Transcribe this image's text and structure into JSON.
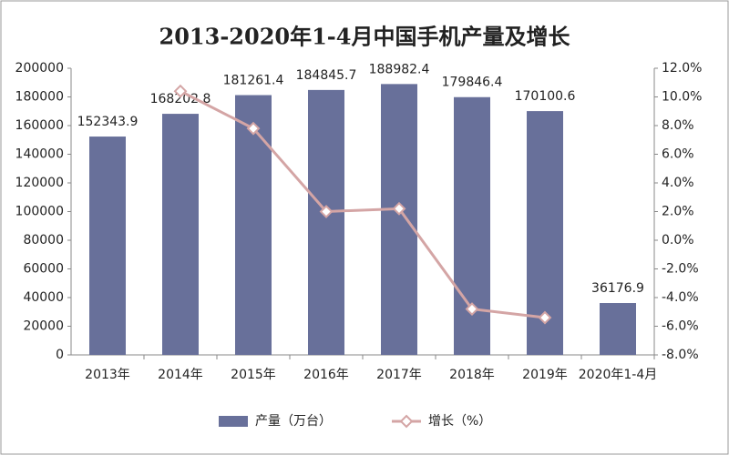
{
  "chart_data": {
    "type": "bar-line",
    "title": "2013-2020年1-4月中国手机产量及增长",
    "categories": [
      "2013年",
      "2014年",
      "2015年",
      "2016年",
      "2017年",
      "2018年",
      "2019年",
      "2020年1-4月"
    ],
    "series": [
      {
        "name": "产量（万台）",
        "type": "bar",
        "color": "#68709a",
        "values": [
          152343.9,
          168202.8,
          181261.4,
          184845.7,
          188982.4,
          179846.4,
          170100.6,
          36176.9
        ]
      },
      {
        "name": "增长（%）",
        "type": "line",
        "axis": "y2",
        "color": "#d4a5a5",
        "values": [
          null,
          10.4,
          7.8,
          2.0,
          2.2,
          -4.8,
          -5.4,
          null
        ]
      }
    ],
    "ylim": [
      0,
      200000
    ],
    "yticks": [
      0,
      20000,
      40000,
      60000,
      80000,
      100000,
      120000,
      140000,
      160000,
      180000,
      200000
    ],
    "y2lim": [
      -8,
      12
    ],
    "y2ticks": [
      {
        "value": -8,
        "label": "-8.0%"
      },
      {
        "value": -6,
        "label": "-6.0%"
      },
      {
        "value": -4,
        "label": "-4.0%"
      },
      {
        "value": -2,
        "label": "-2.0%"
      },
      {
        "value": 0,
        "label": "0.0%"
      },
      {
        "value": 2,
        "label": "2.0%"
      },
      {
        "value": 4,
        "label": "4.0%"
      },
      {
        "value": 6,
        "label": "6.0%"
      },
      {
        "value": 8,
        "label": "8.0%"
      },
      {
        "value": 10,
        "label": "10.0%"
      },
      {
        "value": 12,
        "label": "12.0%"
      }
    ],
    "legend": "bottom"
  }
}
